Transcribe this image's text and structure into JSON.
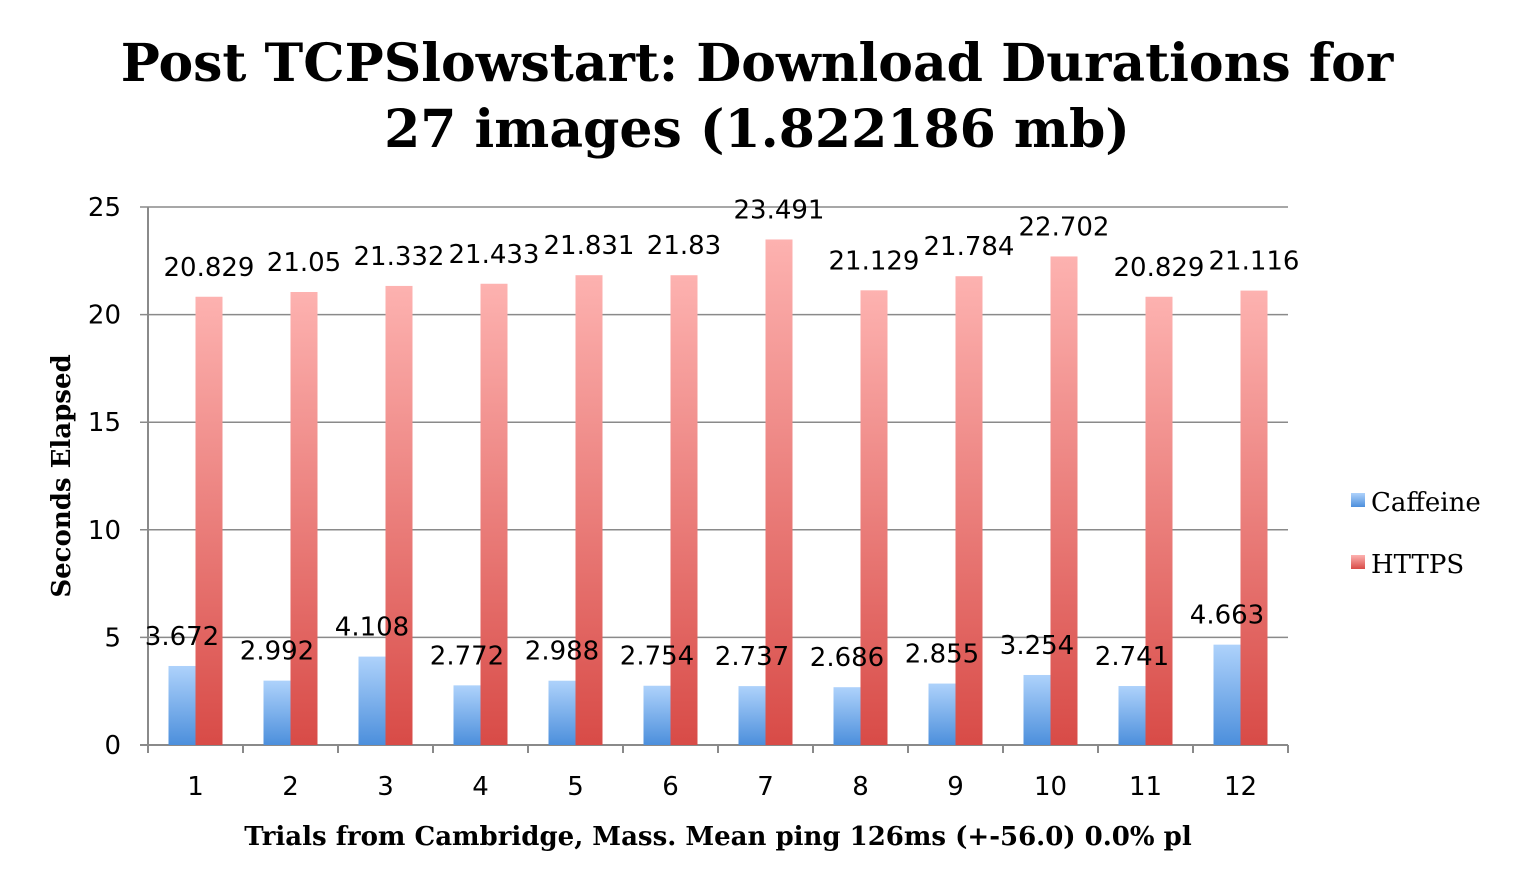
{
  "chart_data": {
    "type": "bar",
    "title": [
      "Post TCPSlowstart: Download Durations for",
      "27 images  (1.822186 mb)"
    ],
    "xlabel": "Trials from Cambridge, Mass. Mean ping 126ms (+-56.0) 0.0% pl",
    "ylabel": "Seconds Elapsed",
    "ylim": [
      0,
      25
    ],
    "yticks": [
      "0",
      "5",
      "10",
      "15",
      "20",
      "25"
    ],
    "categories": [
      "1",
      "2",
      "3",
      "4",
      "5",
      "6",
      "7",
      "8",
      "9",
      "10",
      "11",
      "12"
    ],
    "grid": true,
    "legend": "right",
    "series": [
      {
        "name": "Caffeine",
        "color_top": "#aed2fb",
        "color_bottom": "#4c8fdc",
        "values": [
          3.672,
          2.992,
          4.108,
          2.772,
          2.988,
          2.754,
          2.737,
          2.686,
          2.855,
          3.254,
          2.741,
          4.663
        ],
        "labels": [
          "3.672",
          "2.992",
          "4.108",
          "2.772",
          "2.988",
          "2.754",
          "2.737",
          "2.686",
          "2.855",
          "3.254",
          "2.741",
          "4.663"
        ]
      },
      {
        "name": "HTTPS",
        "color_top": "#fdb2b0",
        "color_bottom": "#d84b47",
        "values": [
          20.829,
          21.05,
          21.332,
          21.433,
          21.831,
          21.83,
          23.491,
          21.129,
          21.784,
          22.702,
          20.829,
          21.116
        ],
        "labels": [
          "20.829",
          "21.05",
          "21.332",
          "21.433",
          "21.831",
          "21.83",
          "23.491",
          "21.129",
          "21.784",
          "22.702",
          "20.829",
          "21.116"
        ]
      }
    ]
  }
}
